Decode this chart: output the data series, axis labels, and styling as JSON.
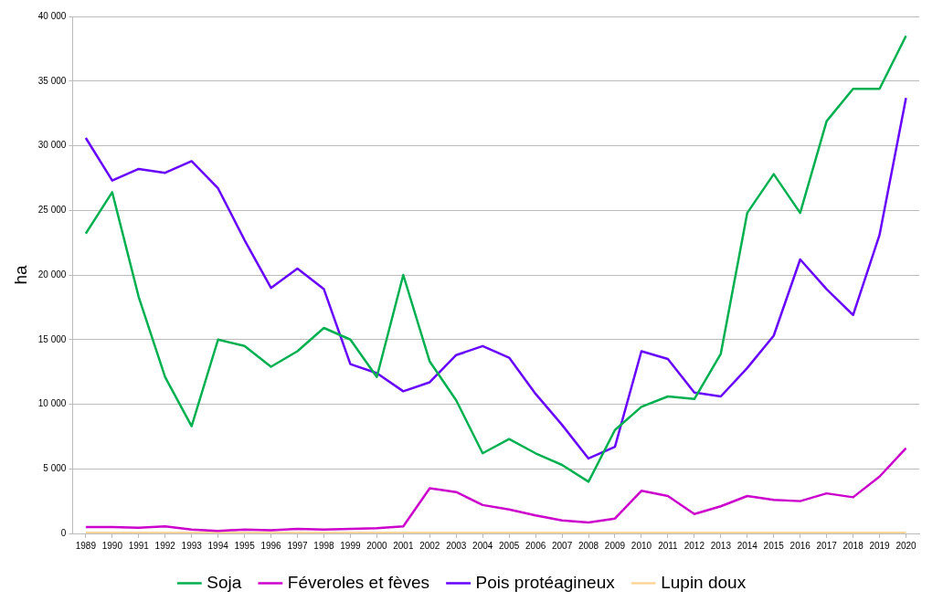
{
  "chart_data": {
    "type": "line",
    "ylabel": "ha",
    "categories": [
      "1989",
      "1990",
      "1991",
      "1992",
      "1993",
      "1994",
      "1995",
      "1996",
      "1997",
      "1998",
      "1999",
      "2000",
      "2001",
      "2002",
      "2003",
      "2004",
      "2005",
      "2006",
      "2007",
      "2008",
      "2009",
      "2010",
      "2011",
      "2012",
      "2013",
      "2014",
      "2015",
      "2016",
      "2017",
      "2018",
      "2019",
      "2020"
    ],
    "series": [
      {
        "name": "Soja",
        "color": "#00b050",
        "values": [
          23200,
          26400,
          18300,
          12100,
          8300,
          15000,
          14500,
          12900,
          14100,
          15900,
          15000,
          12100,
          20000,
          13300,
          10300,
          6200,
          7300,
          6200,
          5300,
          4000,
          8000,
          9800,
          10600,
          10400,
          13900,
          24800,
          27800,
          24800,
          31900,
          34400,
          34400,
          38500
        ]
      },
      {
        "name": "Féveroles et fèves",
        "color": "#cc00cc",
        "values": [
          500,
          500,
          450,
          550,
          300,
          200,
          300,
          250,
          350,
          300,
          350,
          400,
          550,
          3500,
          3200,
          2200,
          1850,
          1400,
          1000,
          850,
          1150,
          3300,
          2900,
          1500,
          2100,
          2900,
          2600,
          2500,
          3100,
          2800,
          4400,
          6600
        ]
      },
      {
        "name": "Pois protéagineux",
        "color": "#6600ff",
        "values": [
          30600,
          27300,
          28200,
          27900,
          28800,
          26700,
          22700,
          19000,
          20500,
          18900,
          13100,
          12400,
          11000,
          11700,
          13800,
          14500,
          13600,
          10800,
          8400,
          5800,
          6700,
          14100,
          13500,
          10900,
          10600,
          12800,
          15300,
          21200,
          18900,
          16900,
          23100,
          33700
        ]
      },
      {
        "name": "Lupin doux",
        "color": "#ffd699",
        "values": [
          50,
          50,
          50,
          50,
          50,
          50,
          50,
          50,
          50,
          50,
          50,
          50,
          50,
          50,
          50,
          50,
          50,
          50,
          50,
          50,
          50,
          50,
          50,
          50,
          50,
          50,
          50,
          50,
          50,
          50,
          50,
          50
        ]
      }
    ],
    "ylim": [
      0,
      40000
    ],
    "yticks": [
      {
        "value": 0,
        "label": "0"
      },
      {
        "value": 5000,
        "label": "5 000"
      },
      {
        "value": 10000,
        "label": "10 000"
      },
      {
        "value": 15000,
        "label": "15 000"
      },
      {
        "value": 20000,
        "label": "20 000"
      },
      {
        "value": 25000,
        "label": "25 000"
      },
      {
        "value": 30000,
        "label": "30 000"
      },
      {
        "value": 35000,
        "label": "35 000"
      },
      {
        "value": 40000,
        "label": "40 000"
      }
    ],
    "grid": "y",
    "legend": "bottom",
    "marker": "none",
    "line_style": "solid"
  }
}
